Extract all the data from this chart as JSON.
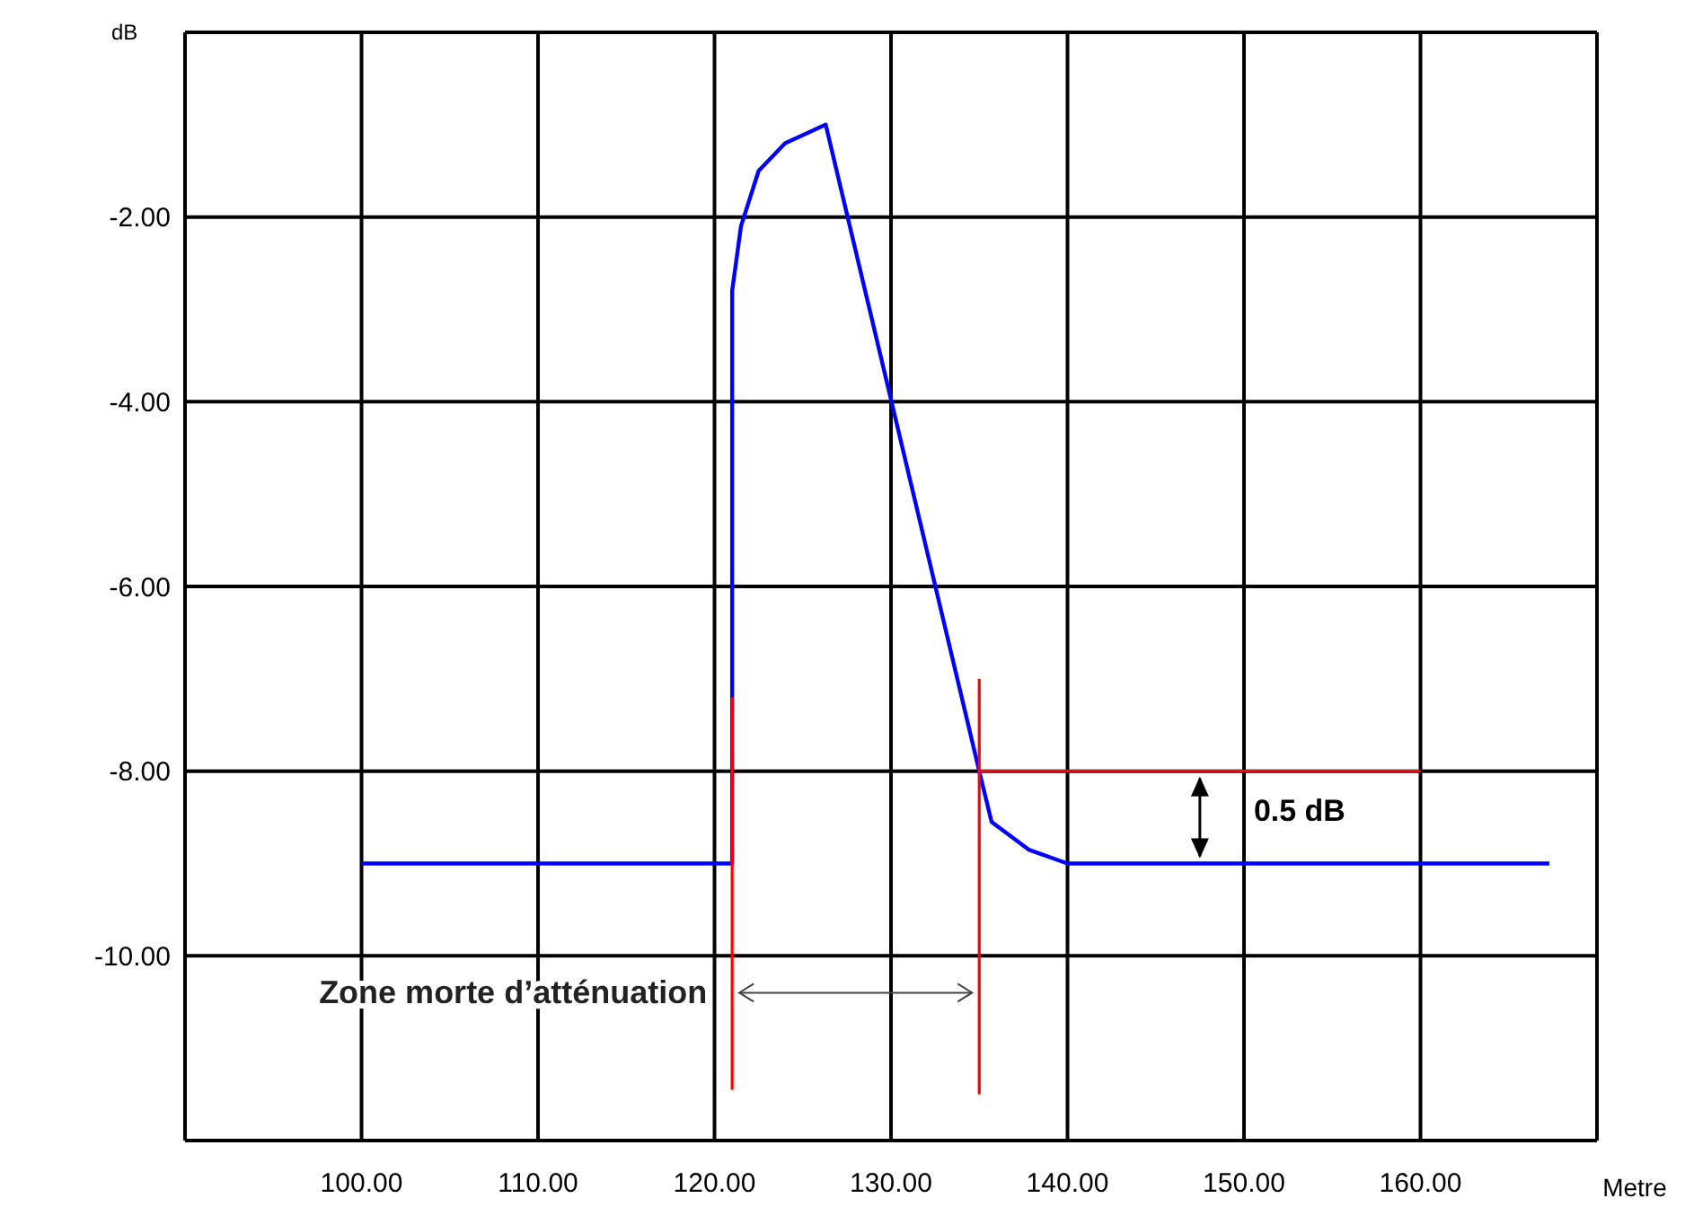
{
  "chart_data": {
    "type": "line",
    "ylabel": "dB",
    "xlabel": "Metre",
    "xlim": [
      90,
      170
    ],
    "xticks": [
      {
        "value": 90,
        "label": null
      },
      {
        "value": 100,
        "label": "100.00"
      },
      {
        "value": 110,
        "label": "110.00"
      },
      {
        "value": 120,
        "label": "120.00"
      },
      {
        "value": 130,
        "label": "130.00"
      },
      {
        "value": 140,
        "label": "140.00"
      },
      {
        "value": 150,
        "label": "150.00"
      },
      {
        "value": 160,
        "label": "160.00"
      },
      {
        "value": 170,
        "label": null
      }
    ],
    "ylim": [
      -12,
      0
    ],
    "yticks": [
      {
        "value": -12,
        "label": null
      },
      {
        "value": -10,
        "label": "-10.00"
      },
      {
        "value": -8,
        "label": "-8.00"
      },
      {
        "value": -6,
        "label": "-6.00"
      },
      {
        "value": -4,
        "label": "-4.00"
      },
      {
        "value": -2,
        "label": "-2.00"
      },
      {
        "value": 0,
        "label": null
      }
    ],
    "grid": true,
    "marker": "none",
    "line_style": "solid",
    "series": [
      {
        "color": "#0000ff",
        "x": [
          100,
          121,
          121,
          121.5,
          122.5,
          124,
          126.3,
          135,
          135.7,
          137.8,
          140,
          142,
          167.3
        ],
        "values": [
          -9,
          -9,
          -2.8,
          -2.1,
          -1.5,
          -1.2,
          -1,
          -8,
          -8.55,
          -8.85,
          -9,
          -9,
          -9
        ]
      },
      {
        "color": "#ff0000",
        "x": [
          121,
          121
        ],
        "values": [
          -7.2,
          -11.45
        ]
      },
      {
        "color": "#ff0000",
        "x": [
          135,
          135
        ],
        "values": [
          -7,
          -11.5
        ]
      },
      {
        "color": "#ff0000",
        "x": [
          135,
          160
        ],
        "values": [
          -8,
          -8
        ]
      }
    ],
    "annotations": [
      "0.5 dB",
      {
        "text": "Zone morte d’atténuation",
        "x": 121,
        "y": -10.4
      }
    ]
  }
}
